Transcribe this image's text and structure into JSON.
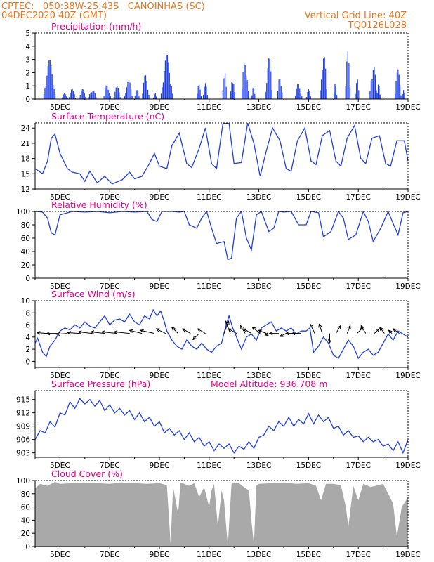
{
  "header": {
    "line1_left": "CPTEC:   050:38W-25:43S   CANOINHAS (SC)",
    "line2_left": "04DEC2020 40Z (GMT)",
    "line1_right": "Vertical Grid Line: 40Z",
    "line2_right": "TQ0126L028"
  },
  "colors": {
    "series": "#1f3fe0",
    "header": "#e8741c",
    "title": "#e0008a",
    "cloud": "#a9a9a9",
    "axis": "#000000"
  },
  "chart_data": [
    {
      "type": "bar",
      "title": "Precipitation (mm/h)",
      "xlim": [
        4.0,
        19.0
      ],
      "x_ticks": [
        5,
        7,
        9,
        11,
        13,
        15,
        17,
        19
      ],
      "x_tick_labels": [
        "5DEC",
        "7DEC",
        "9DEC",
        "11DEC",
        "13DEC",
        "15DEC",
        "17DEC",
        "19DEC"
      ],
      "ylim": [
        0,
        5
      ],
      "y_ticks": [
        0,
        1,
        2,
        3,
        4,
        5
      ],
      "events": [
        {
          "c": 4.58,
          "w": 0.5,
          "p": 3.0
        },
        {
          "c": 5.2,
          "w": 0.25,
          "p": 0.5
        },
        {
          "c": 5.5,
          "w": 0.3,
          "p": 0.8
        },
        {
          "c": 5.9,
          "w": 0.3,
          "p": 0.8
        },
        {
          "c": 6.3,
          "w": 0.35,
          "p": 0.8
        },
        {
          "c": 6.9,
          "w": 0.3,
          "p": 1.2
        },
        {
          "c": 7.3,
          "w": 0.3,
          "p": 1.0
        },
        {
          "c": 7.75,
          "w": 0.35,
          "p": 1.5
        },
        {
          "c": 8.1,
          "w": 0.2,
          "p": 0.9
        },
        {
          "c": 8.45,
          "w": 0.3,
          "p": 2.0
        },
        {
          "c": 8.82,
          "w": 0.15,
          "p": 0.5
        },
        {
          "c": 9.3,
          "w": 0.5,
          "p": 3.4
        },
        {
          "c": 10.6,
          "w": 0.2,
          "p": 1.3
        },
        {
          "c": 10.85,
          "w": 0.2,
          "p": 1.2
        },
        {
          "c": 11.62,
          "w": 0.18,
          "p": 2.5
        },
        {
          "c": 11.95,
          "w": 0.2,
          "p": 2.0
        },
        {
          "c": 12.45,
          "w": 0.3,
          "p": 3.3
        },
        {
          "c": 12.78,
          "w": 0.15,
          "p": 1.0
        },
        {
          "c": 13.4,
          "w": 0.3,
          "p": 3.4
        },
        {
          "c": 13.85,
          "w": 0.22,
          "p": 2.1
        },
        {
          "c": 14.6,
          "w": 0.3,
          "p": 1.3
        },
        {
          "c": 15.0,
          "w": 0.2,
          "p": 0.8
        },
        {
          "c": 15.6,
          "w": 0.3,
          "p": 3.7
        },
        {
          "c": 16.08,
          "w": 0.15,
          "p": 1.3
        },
        {
          "c": 16.58,
          "w": 0.22,
          "p": 3.6
        },
        {
          "c": 16.95,
          "w": 0.18,
          "p": 1.8
        },
        {
          "c": 17.6,
          "w": 0.3,
          "p": 3.0
        },
        {
          "c": 17.82,
          "w": 0.15,
          "p": 1.2
        },
        {
          "c": 18.6,
          "w": 0.28,
          "p": 2.3
        },
        {
          "c": 18.82,
          "w": 0.12,
          "p": 1.1
        }
      ]
    },
    {
      "type": "line",
      "title": "Surface Temperature (nC)",
      "xlim": [
        4.0,
        19.0
      ],
      "x_ticks": [
        5,
        7,
        9,
        11,
        13,
        15,
        17,
        19
      ],
      "x_tick_labels": [
        "5DEC",
        "7DEC",
        "9DEC",
        "11DEC",
        "13DEC",
        "15DEC",
        "17DEC",
        "19DEC"
      ],
      "ylim": [
        12,
        25
      ],
      "y_ticks": [
        12,
        15,
        18,
        21,
        24
      ],
      "x": [
        4.0,
        4.3,
        4.5,
        4.65,
        4.8,
        5.0,
        5.3,
        5.5,
        5.8,
        6.0,
        6.2,
        6.5,
        6.8,
        7.1,
        7.5,
        7.8,
        8.0,
        8.3,
        8.6,
        8.8,
        9.0,
        9.3,
        9.5,
        9.8,
        10.1,
        10.3,
        10.6,
        10.85,
        11.1,
        11.3,
        11.55,
        11.8,
        12.0,
        12.3,
        12.55,
        12.8,
        13.05,
        13.3,
        13.55,
        13.85,
        14.1,
        14.3,
        14.55,
        14.85,
        15.1,
        15.3,
        15.55,
        15.85,
        16.1,
        16.3,
        16.55,
        16.85,
        17.1,
        17.3,
        17.55,
        17.85,
        18.1,
        18.3,
        18.55,
        18.85,
        19.0
      ],
      "y": [
        16.0,
        15.0,
        17.5,
        22.0,
        22.8,
        19.0,
        16.0,
        15.3,
        15.0,
        13.5,
        15.5,
        13.2,
        14.5,
        13.0,
        13.8,
        15.3,
        14.0,
        14.5,
        17.0,
        19.0,
        16.5,
        16.0,
        20.5,
        23.0,
        17.0,
        16.2,
        20.0,
        24.0,
        17.0,
        16.0,
        24.8,
        25.0,
        17.0,
        17.2,
        25.0,
        21.0,
        14.5,
        19.5,
        24.0,
        21.5,
        16.0,
        15.5,
        21.5,
        24.0,
        17.5,
        16.8,
        22.5,
        23.5,
        17.5,
        16.5,
        22.0,
        24.5,
        18.0,
        17.0,
        22.0,
        22.5,
        17.0,
        16.5,
        21.5,
        21.5,
        17.5
      ]
    },
    {
      "type": "line",
      "title": "Relative Humidity (%)",
      "xlim": [
        4.0,
        19.0
      ],
      "x_ticks": [
        5,
        7,
        9,
        11,
        13,
        15,
        17,
        19
      ],
      "x_tick_labels": [
        "5DEC",
        "7DEC",
        "9DEC",
        "11DEC",
        "13DEC",
        "15DEC",
        "17DEC",
        "19DEC"
      ],
      "ylim": [
        0,
        100
      ],
      "y_ticks": [
        0,
        20,
        40,
        60,
        80,
        100
      ],
      "x": [
        4.0,
        4.3,
        4.5,
        4.65,
        4.8,
        5.0,
        5.5,
        6.0,
        6.5,
        7.0,
        7.5,
        8.0,
        8.5,
        8.7,
        8.9,
        9.1,
        9.5,
        9.8,
        10.0,
        10.2,
        10.5,
        10.7,
        10.9,
        11.1,
        11.3,
        11.6,
        11.75,
        11.9,
        12.1,
        12.3,
        12.5,
        12.7,
        12.9,
        13.1,
        13.4,
        13.6,
        13.8,
        14.0,
        14.3,
        14.6,
        14.9,
        15.1,
        15.4,
        15.6,
        15.9,
        16.2,
        16.4,
        16.6,
        16.9,
        17.2,
        17.4,
        17.6,
        17.9,
        18.2,
        18.4,
        18.6,
        18.8,
        19.0
      ],
      "y": [
        100,
        99,
        90,
        68,
        65,
        95,
        100,
        99,
        100,
        98,
        100,
        99,
        100,
        88,
        85,
        100,
        100,
        99,
        100,
        80,
        75,
        90,
        100,
        75,
        52,
        55,
        28,
        30,
        90,
        100,
        60,
        42,
        95,
        100,
        70,
        75,
        100,
        99,
        100,
        80,
        80,
        100,
        98,
        62,
        70,
        100,
        90,
        58,
        65,
        100,
        85,
        55,
        75,
        100,
        82,
        65,
        98,
        100
      ]
    },
    {
      "type": "line",
      "title": "Surface Wind (m/s)",
      "xlim": [
        4.0,
        19.0
      ],
      "x_ticks": [
        5,
        7,
        9,
        11,
        13,
        15,
        17,
        19
      ],
      "x_tick_labels": [
        "5DEC",
        "7DEC",
        "9DEC",
        "11DEC",
        "13DEC",
        "15DEC",
        "17DEC",
        "19DEC"
      ],
      "ylim": [
        -1,
        10
      ],
      "y_ticks": [
        0,
        2,
        4,
        6,
        8,
        10
      ],
      "x": [
        4.0,
        4.1,
        4.3,
        4.45,
        4.6,
        4.8,
        5.0,
        5.2,
        5.4,
        5.6,
        5.8,
        6.0,
        6.2,
        6.4,
        6.6,
        6.8,
        7.0,
        7.2,
        7.4,
        7.6,
        7.8,
        8.0,
        8.2,
        8.4,
        8.6,
        8.75,
        8.9,
        9.05,
        9.2,
        9.3,
        9.5,
        9.7,
        9.9,
        10.1,
        10.3,
        10.5,
        10.7,
        10.9,
        11.1,
        11.3,
        11.5,
        11.65,
        11.8,
        11.95,
        12.1,
        12.3,
        12.5,
        12.7,
        12.9,
        13.1,
        13.3,
        13.5,
        13.7,
        13.9,
        14.1,
        14.3,
        14.5,
        14.7,
        14.9,
        15.05,
        15.2,
        15.4,
        15.6,
        15.8,
        16.0,
        16.2,
        16.4,
        16.6,
        16.8,
        17.0,
        17.2,
        17.4,
        17.6,
        17.8,
        18.0,
        18.2,
        18.4,
        18.6,
        18.8,
        19.0
      ],
      "y": [
        3.0,
        3.8,
        1.5,
        0.8,
        2.5,
        3.5,
        5.0,
        5.5,
        5.2,
        6.0,
        5.5,
        6.5,
        5.8,
        5.5,
        6.5,
        7.5,
        6.0,
        6.8,
        7.0,
        6.5,
        7.8,
        6.5,
        6.0,
        7.5,
        7.0,
        8.5,
        7.5,
        8.3,
        6.5,
        5.0,
        3.5,
        2.5,
        2.0,
        3.5,
        2.5,
        2.0,
        3.0,
        2.0,
        1.5,
        2.5,
        3.0,
        5.5,
        7.5,
        5.5,
        4.0,
        2.0,
        4.0,
        4.5,
        3.5,
        5.5,
        6.0,
        6.5,
        5.0,
        5.5,
        5.0,
        5.5,
        4.5,
        5.0,
        5.0,
        5.5,
        1.5,
        2.5,
        4.0,
        3.0,
        1.0,
        0.5,
        2.0,
        3.5,
        2.5,
        0.5,
        1.5,
        2.0,
        1.0,
        1.5,
        3.0,
        4.5,
        3.5,
        5.0,
        4.5,
        4.0
      ],
      "wind_arrows": [
        {
          "x": 4.45,
          "u": -0.6,
          "v": 0.05
        },
        {
          "x": 4.9,
          "u": -0.7,
          "v": 0.0
        },
        {
          "x": 5.3,
          "u": -0.7,
          "v": -0.05
        },
        {
          "x": 5.8,
          "u": -0.8,
          "v": 0.05
        },
        {
          "x": 6.3,
          "u": -0.9,
          "v": 0.1
        },
        {
          "x": 6.8,
          "u": -0.9,
          "v": 0.1
        },
        {
          "x": 7.3,
          "u": -1.0,
          "v": 0.1
        },
        {
          "x": 7.8,
          "u": -1.0,
          "v": 0.1
        },
        {
          "x": 8.3,
          "u": -0.8,
          "v": 0.2
        },
        {
          "x": 8.8,
          "u": -0.9,
          "v": 0.2
        },
        {
          "x": 9.25,
          "u": -0.6,
          "v": 0.3
        },
        {
          "x": 9.75,
          "u": -0.4,
          "v": 0.4
        },
        {
          "x": 10.25,
          "u": -0.5,
          "v": 0.3
        },
        {
          "x": 10.6,
          "u": -0.4,
          "v": -0.4
        },
        {
          "x": 10.85,
          "u": -0.5,
          "v": 0.3
        },
        {
          "x": 11.6,
          "u": 0.3,
          "v": 0.8
        },
        {
          "x": 11.85,
          "u": -0.3,
          "v": 0.8
        },
        {
          "x": 12.1,
          "u": -0.5,
          "v": 0.3
        },
        {
          "x": 12.45,
          "u": -0.3,
          "v": 0.5
        },
        {
          "x": 12.7,
          "u": -0.5,
          "v": 0.3
        },
        {
          "x": 13.05,
          "u": -0.5,
          "v": 0.4
        },
        {
          "x": 13.3,
          "u": -0.5,
          "v": 0.2
        },
        {
          "x": 13.5,
          "u": -0.4,
          "v": -0.1
        },
        {
          "x": 13.8,
          "u": -0.6,
          "v": 0.0
        },
        {
          "x": 14.1,
          "u": -0.4,
          "v": -0.2
        },
        {
          "x": 14.4,
          "u": -0.5,
          "v": 0.0
        },
        {
          "x": 14.7,
          "u": -0.6,
          "v": 0.0
        },
        {
          "x": 15.25,
          "u": -0.3,
          "v": 0.6
        },
        {
          "x": 15.55,
          "u": -0.2,
          "v": 0.6
        },
        {
          "x": 15.85,
          "u": 0.0,
          "v": -0.6
        },
        {
          "x": 16.1,
          "u": 0.3,
          "v": 0.5
        },
        {
          "x": 16.55,
          "u": 0.2,
          "v": 0.5
        },
        {
          "x": 16.95,
          "u": 0.4,
          "v": 0.4
        },
        {
          "x": 17.3,
          "u": -0.3,
          "v": 0.5
        },
        {
          "x": 17.65,
          "u": 0.3,
          "v": 0.3
        },
        {
          "x": 18.05,
          "u": -0.3,
          "v": 0.4
        },
        {
          "x": 18.35,
          "u": -0.2,
          "v": 0.2
        },
        {
          "x": 18.65,
          "u": -0.4,
          "v": 0.3
        }
      ]
    },
    {
      "type": "line",
      "title": "Surface Pressure (hPa)",
      "subtitle": "Model Altitude: 936.708 m",
      "xlim": [
        4.0,
        19.0
      ],
      "x_ticks": [
        5,
        7,
        9,
        11,
        13,
        15,
        17,
        19
      ],
      "x_tick_labels": [
        "5DEC",
        "7DEC",
        "9DEC",
        "11DEC",
        "13DEC",
        "15DEC",
        "17DEC",
        "19DEC"
      ],
      "ylim": [
        902,
        917
      ],
      "y_ticks": [
        903,
        906,
        909,
        912,
        915
      ],
      "x": [
        4.0,
        4.2,
        4.4,
        4.6,
        4.8,
        5.0,
        5.2,
        5.4,
        5.6,
        5.8,
        6.0,
        6.2,
        6.4,
        6.6,
        6.8,
        7.0,
        7.2,
        7.4,
        7.6,
        7.8,
        8.0,
        8.2,
        8.4,
        8.6,
        8.8,
        9.0,
        9.2,
        9.4,
        9.6,
        9.8,
        10.0,
        10.2,
        10.4,
        10.6,
        10.8,
        11.0,
        11.2,
        11.4,
        11.6,
        11.8,
        12.0,
        12.2,
        12.4,
        12.6,
        12.8,
        13.0,
        13.2,
        13.4,
        13.6,
        13.8,
        14.0,
        14.2,
        14.4,
        14.6,
        14.8,
        15.0,
        15.2,
        15.4,
        15.6,
        15.8,
        16.0,
        16.2,
        16.4,
        16.6,
        16.8,
        17.0,
        17.2,
        17.4,
        17.6,
        17.8,
        18.0,
        18.2,
        18.4,
        18.6,
        18.8,
        19.0
      ],
      "y": [
        906.0,
        908.0,
        907.5,
        910.0,
        908.8,
        912.0,
        911.5,
        914.5,
        913.0,
        915.2,
        914.0,
        915.0,
        913.5,
        914.8,
        912.5,
        913.8,
        912.0,
        913.0,
        911.5,
        912.5,
        910.5,
        912.0,
        910.0,
        911.0,
        909.0,
        910.0,
        907.5,
        908.5,
        907.0,
        908.0,
        906.0,
        907.5,
        905.5,
        906.5,
        904.5,
        905.5,
        903.5,
        905.0,
        904.0,
        905.0,
        903.0,
        904.5,
        903.8,
        905.5,
        904.0,
        906.5,
        907.0,
        909.0,
        908.0,
        910.0,
        909.0,
        911.0,
        909.0,
        910.5,
        909.5,
        911.8,
        909.5,
        911.5,
        910.0,
        911.0,
        908.5,
        909.0,
        907.0,
        908.0,
        906.5,
        906.8,
        905.5,
        906.5,
        905.5,
        906.0,
        904.5,
        905.0,
        903.5,
        905.5,
        903.0,
        906.0
      ]
    },
    {
      "type": "area",
      "title": "Cloud Cover (%)",
      "xlim": [
        4.0,
        19.0
      ],
      "x_ticks": [
        5,
        7,
        9,
        11,
        13,
        15,
        17,
        19
      ],
      "x_tick_labels": [
        "5DEC",
        "7DEC",
        "9DEC",
        "11DEC",
        "13DEC",
        "15DEC",
        "17DEC",
        "19DEC"
      ],
      "ylim": [
        0,
        100
      ],
      "y_ticks": [
        0,
        20,
        40,
        60,
        80,
        100
      ],
      "x": [
        4.0,
        4.2,
        4.5,
        4.8,
        5.0,
        5.5,
        6.0,
        6.5,
        7.0,
        7.5,
        8.0,
        8.5,
        9.0,
        9.3,
        9.45,
        9.55,
        9.75,
        9.85,
        10.0,
        10.2,
        10.4,
        10.6,
        10.8,
        11.0,
        11.1,
        11.2,
        11.35,
        11.5,
        11.6,
        11.75,
        11.9,
        12.0,
        12.2,
        12.4,
        12.6,
        12.7,
        12.8,
        12.9,
        13.0,
        13.5,
        14.0,
        14.5,
        15.0,
        15.3,
        15.5,
        15.7,
        16.0,
        16.3,
        16.5,
        16.6,
        16.8,
        17.0,
        17.2,
        17.5,
        17.8,
        18.0,
        18.2,
        18.4,
        18.55,
        18.75,
        19.0
      ],
      "y": [
        88,
        95,
        92,
        98,
        95,
        96,
        97,
        96,
        95,
        97,
        96,
        95,
        96,
        93,
        5,
        90,
        50,
        97,
        95,
        92,
        96,
        75,
        90,
        60,
        85,
        95,
        30,
        85,
        70,
        2,
        95,
        97,
        96,
        90,
        85,
        40,
        2,
        92,
        95,
        96,
        97,
        95,
        96,
        92,
        70,
        95,
        95,
        93,
        60,
        30,
        92,
        70,
        95,
        90,
        93,
        95,
        80,
        65,
        15,
        60,
        75
      ]
    }
  ]
}
